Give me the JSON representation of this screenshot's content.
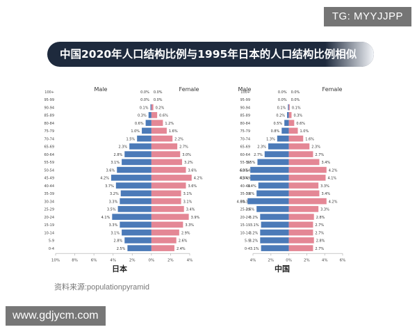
{
  "watermark_top": "TG: MYYJJPP",
  "title": "中国2020年人口结构比例与1995年日本的人口结构比例相似",
  "source": "资料来源:populationpyramid",
  "watermark_bottom": "www.gdjycm.com",
  "colors": {
    "male": "#4b7ab8",
    "female": "#e48795",
    "title_bg": "#1e2a3d"
  },
  "chart_data": [
    {
      "type": "population-pyramid",
      "chart_label": "日本",
      "left_label": "Male",
      "right_label": "Female",
      "age_groups": [
        "0-4",
        "5-9",
        "10-14",
        "15-19",
        "20-24",
        "25-29",
        "30-34",
        "35-39",
        "40-44",
        "45-49",
        "50-54",
        "55-59",
        "60-64",
        "65-69",
        "70-74",
        "75-79",
        "80-84",
        "85-89",
        "90-94",
        "95-99",
        "100+"
      ],
      "male": [
        2.5,
        2.8,
        3.1,
        3.3,
        4.1,
        3.5,
        3.3,
        3.2,
        3.7,
        4.2,
        3.6,
        3.1,
        2.8,
        2.3,
        1.5,
        1.0,
        0.6,
        0.3,
        0.1,
        0.0,
        0.0
      ],
      "female": [
        2.4,
        2.6,
        2.9,
        3.3,
        3.9,
        3.4,
        3.1,
        3.1,
        3.6,
        4.2,
        3.6,
        3.2,
        3.0,
        2.7,
        2.2,
        1.6,
        1.2,
        0.6,
        0.2,
        0.0,
        0.0
      ],
      "male_labels": [
        "2.5%",
        "2.8%",
        "3.1%",
        "3.3%",
        "4.1%",
        "3.5%",
        "3.3%",
        "3.2%",
        "3.7%",
        "4.2%",
        "3.6%",
        "3.1%",
        "2.8%",
        "2.3%",
        "1.5%",
        "1.0%",
        "0.6%",
        "0.3%",
        "0.1%",
        "0.0%",
        "0.0%"
      ],
      "female_labels": [
        "2.4%",
        "2.6%",
        "2.9%",
        "3.3%",
        "3.9%",
        "3.4%",
        "3.1%",
        "3.1%",
        "3.6%",
        "4.2%",
        "3.6%",
        "3.2%",
        "3.0%",
        "2.7%",
        "2.2%",
        "1.6%",
        "1.2%",
        "0.6%",
        "0.2%",
        "0.0%",
        "0.0%"
      ],
      "xticks": [
        -10,
        -8,
        -6,
        -4,
        -2,
        0,
        2,
        4
      ],
      "xtick_labels": [
        "10%",
        "8%",
        "6%",
        "4%",
        "2%",
        "0%",
        "2%",
        "4%"
      ],
      "xlim": [
        -10,
        4
      ]
    },
    {
      "type": "population-pyramid",
      "chart_label": "中国",
      "left_label": "Male",
      "right_label": "Female",
      "age_groups": [
        "0-4",
        "5-9",
        "10-14",
        "15-19",
        "20-24",
        "25-29",
        "30-34",
        "35-39",
        "40-44",
        "45-49",
        "50-54",
        "55-59",
        "60-64",
        "65-69",
        "70-74",
        "75-79",
        "80-84",
        "85-89",
        "90-94",
        "95-99",
        "100+"
      ],
      "male": [
        3.1,
        3.2,
        3.2,
        3.1,
        3.2,
        3.6,
        4.6,
        3.6,
        3.4,
        4.3,
        4.3,
        3.5,
        2.7,
        2.3,
        1.3,
        0.8,
        0.5,
        0.2,
        0.1,
        0.0,
        0.0
      ],
      "female": [
        2.7,
        2.8,
        2.7,
        2.7,
        2.8,
        3.3,
        4.2,
        3.4,
        3.3,
        4.1,
        4.2,
        3.4,
        2.7,
        2.3,
        1.6,
        1.0,
        0.6,
        0.3,
        0.1,
        0.0,
        0.0
      ],
      "male_labels": [
        "3.1%",
        "3.2%",
        "3.2%",
        "3.1%",
        "3.2%",
        "3.6%",
        "4.6%",
        "3.6%",
        "3.4%",
        "4.3%",
        "4.3%",
        "3.5%",
        "2.7%",
        "2.3%",
        "1.3%",
        "0.8%",
        "0.5%",
        "0.2%",
        "0.1%",
        "0.0%",
        "0.0%"
      ],
      "female_labels": [
        "2.7%",
        "2.8%",
        "2.7%",
        "2.7%",
        "2.8%",
        "3.3%",
        "4.2%",
        "3.4%",
        "3.3%",
        "4.1%",
        "4.2%",
        "3.4%",
        "2.7%",
        "2.3%",
        "1.6%",
        "1.0%",
        "0.6%",
        "0.3%",
        "0.1%",
        "0.0%",
        "0.0%"
      ],
      "xticks": [
        -4,
        -2,
        0,
        2,
        4,
        6
      ],
      "xtick_labels": [
        "4%",
        "2%",
        "0%",
        "2%",
        "4%",
        "6%"
      ],
      "xlim": [
        -4,
        6
      ]
    }
  ]
}
